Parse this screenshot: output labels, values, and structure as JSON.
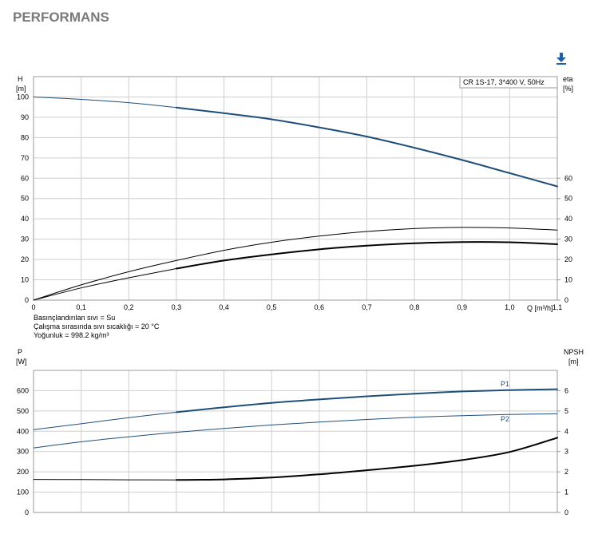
{
  "page": {
    "title": "PERFORMANS",
    "download_icon": "download-icon"
  },
  "info": {
    "liquid": "Basınçlandırılan sıvı = Su",
    "temperature": "Çalışma sırasında sıvı sıcaklığı = 20 °C",
    "density": "Yoğunluk = 998.2 kg/m³"
  },
  "colors": {
    "blue": "#1f4e79",
    "black": "#000000",
    "grid": "#c8c8c8"
  },
  "chart_data": [
    {
      "type": "line",
      "legend_box": "CR 1S-17, 3*400 V, 50Hz",
      "xlabel": "Q [m³/h]",
      "ylabel_left": [
        "H",
        "[m]"
      ],
      "ylabel_right": [
        "eta",
        "[%]"
      ],
      "xlim": [
        0,
        1.1
      ],
      "ylim_left": [
        0,
        110
      ],
      "ylim_right": [
        0,
        110
      ],
      "x_ticks": [
        "0",
        "0,1",
        "0,2",
        "0,3",
        "0,4",
        "0,5",
        "0,6",
        "0,7",
        "0,8",
        "0,9",
        "1,0",
        "1,1"
      ],
      "y_ticks_left": [
        "0",
        "10",
        "20",
        "30",
        "40",
        "50",
        "60",
        "70",
        "80",
        "90",
        "100"
      ],
      "y_ticks_right": [
        "0",
        "10",
        "20",
        "30",
        "40",
        "50",
        "60"
      ],
      "grid": true,
      "series": [
        {
          "key": "H_thin",
          "axis": "left",
          "color": "#1f4e79",
          "width": 1,
          "x": [
            0,
            0.1,
            0.2,
            0.3
          ],
          "y": [
            100,
            98.8,
            97.2,
            94.8
          ]
        },
        {
          "key": "H",
          "axis": "left",
          "color": "#1f4e79",
          "width": 2,
          "x": [
            0.3,
            0.4,
            0.5,
            0.6,
            0.7,
            0.8,
            0.9,
            1.0,
            1.1
          ],
          "y": [
            94.8,
            92,
            89,
            85,
            80.5,
            75,
            69,
            62.5,
            56
          ]
        },
        {
          "key": "eta_total_thin",
          "axis": "right",
          "color": "#000000",
          "width": 1,
          "x": [
            0,
            0.1,
            0.2,
            0.3,
            0.4,
            0.5,
            0.6,
            0.7,
            0.8,
            0.9,
            1.0,
            1.1
          ],
          "y": [
            0,
            7.5,
            14,
            19.5,
            24.5,
            28.5,
            31.5,
            33.8,
            35.2,
            35.8,
            35.5,
            34.5
          ]
        },
        {
          "key": "eta_pump_thin",
          "axis": "right",
          "color": "#000000",
          "width": 1,
          "x": [
            0,
            0.1,
            0.2,
            0.3
          ],
          "y": [
            0,
            6,
            11,
            15.5
          ]
        },
        {
          "key": "eta_pump",
          "axis": "right",
          "color": "#000000",
          "width": 2,
          "x": [
            0.3,
            0.4,
            0.5,
            0.6,
            0.7,
            0.8,
            0.9,
            1.0,
            1.1
          ],
          "y": [
            15.5,
            19.5,
            22.5,
            25,
            26.8,
            28,
            28.6,
            28.5,
            27.5
          ]
        }
      ]
    },
    {
      "type": "line",
      "ylabel_left": [
        "P",
        "[W]"
      ],
      "ylabel_right": [
        "NPSH",
        "[m]"
      ],
      "xlim": [
        0,
        1.1
      ],
      "ylim_left": [
        0,
        700
      ],
      "ylim_right": [
        0,
        7
      ],
      "y_ticks_left": [
        "0",
        "100",
        "200",
        "300",
        "400",
        "500",
        "600"
      ],
      "y_ticks_right": [
        "0",
        "1",
        "2",
        "3",
        "4",
        "5",
        "6"
      ],
      "grid": true,
      "series_labels": {
        "p1": "P1",
        "p2": "P2"
      },
      "series": [
        {
          "key": "P1_thin",
          "axis": "left",
          "color": "#1f4e79",
          "width": 1,
          "x": [
            0,
            0.1,
            0.2,
            0.3
          ],
          "y": [
            408,
            437,
            467,
            494
          ]
        },
        {
          "key": "P1",
          "axis": "left",
          "color": "#1f4e79",
          "width": 2,
          "x": [
            0.3,
            0.4,
            0.5,
            0.6,
            0.7,
            0.8,
            0.9,
            1.0,
            1.1
          ],
          "y": [
            494,
            518,
            540,
            557,
            572,
            585,
            596,
            603,
            607
          ]
        },
        {
          "key": "P2",
          "axis": "left",
          "color": "#1f4e79",
          "width": 1,
          "x": [
            0,
            0.1,
            0.2,
            0.3,
            0.4,
            0.5,
            0.6,
            0.7,
            0.8,
            0.9,
            1.0,
            1.1
          ],
          "y": [
            318,
            348,
            373,
            395,
            414,
            431,
            445,
            458,
            469,
            477,
            483,
            486
          ]
        },
        {
          "key": "NPSH_thin",
          "axis": "right",
          "color": "#000000",
          "width": 1,
          "x": [
            0,
            0.1,
            0.2,
            0.3
          ],
          "y": [
            1.63,
            1.62,
            1.61,
            1.6
          ]
        },
        {
          "key": "NPSH",
          "axis": "right",
          "color": "#000000",
          "width": 2,
          "x": [
            0.3,
            0.4,
            0.5,
            0.6,
            0.7,
            0.8,
            0.9,
            1.0,
            1.1
          ],
          "y": [
            1.6,
            1.63,
            1.72,
            1.88,
            2.08,
            2.3,
            2.58,
            2.98,
            3.68
          ]
        }
      ]
    }
  ]
}
